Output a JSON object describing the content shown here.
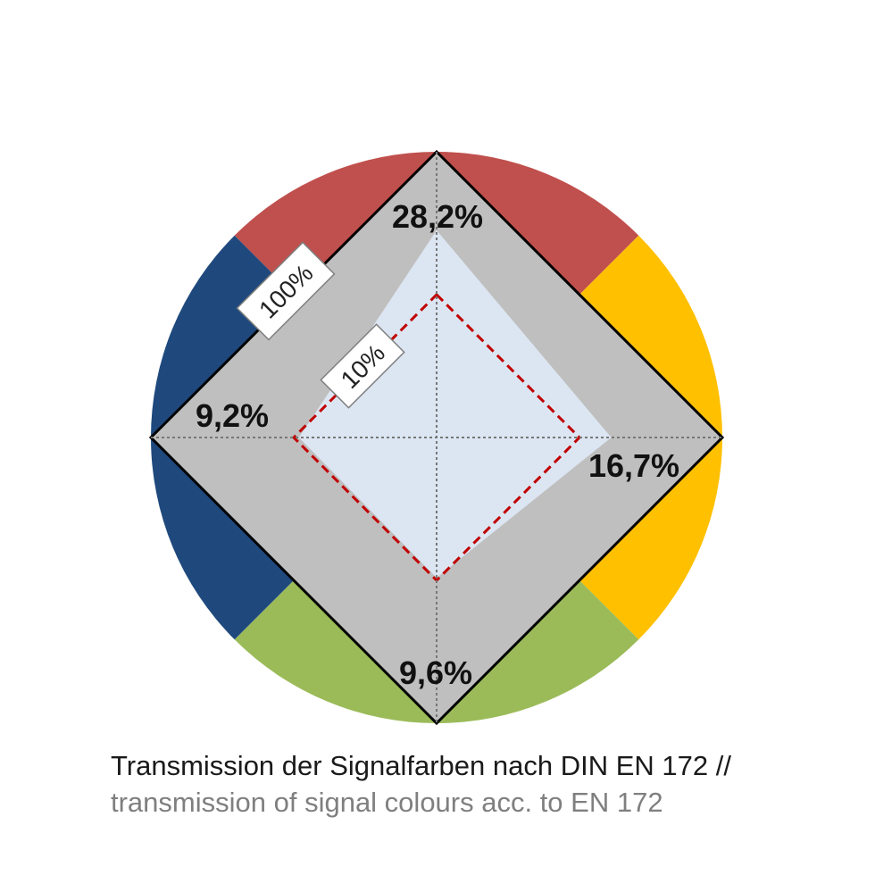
{
  "chart_data": {
    "type": "radar",
    "axes": [
      {
        "name": "red",
        "color": "#C0504D",
        "value": 28.2,
        "label": "28,2%"
      },
      {
        "name": "yellow",
        "color": "#FFC000",
        "value": 16.7,
        "label": "16,7%"
      },
      {
        "name": "green",
        "color": "#9BBB59",
        "value": 9.6,
        "label": "9,6%"
      },
      {
        "name": "blue",
        "color": "#1F497D",
        "value": 9.2,
        "label": "9,2%"
      }
    ],
    "scale": "log",
    "rings": [
      {
        "value": 100,
        "label": "100%"
      },
      {
        "value": 10,
        "label": "10%"
      }
    ],
    "ring_fill": "#BFBFBF",
    "data_fill": "#DCE6F2",
    "reference_line_color": "#C00000"
  },
  "caption": {
    "line_de": "Transmission der Signalfarben nach DIN EN 172 //",
    "line_en": "transmission of signal colours acc. to EN 172"
  }
}
